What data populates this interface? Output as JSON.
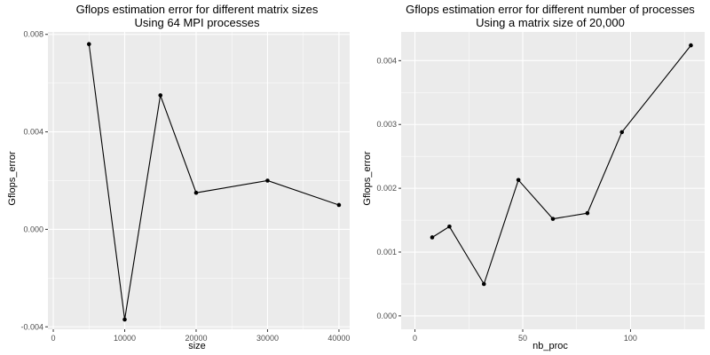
{
  "chart_data": [
    {
      "type": "line",
      "title": "Gflops estimation error for different matrix sizes",
      "subtitle": "Using 64 MPI processes",
      "xlabel": "size",
      "ylabel": "Gflops_error",
      "x": [
        5000,
        10000,
        15000,
        20000,
        30000,
        40000
      ],
      "y": [
        0.0076,
        -0.0037,
        0.0055,
        0.0015,
        0.002,
        0.001
      ],
      "xlim": [
        -750,
        41500
      ],
      "ylim": [
        -0.0041,
        0.0081
      ],
      "xticks": [
        0,
        10000,
        20000,
        30000,
        40000
      ],
      "xtick_labels": [
        "0",
        "10000",
        "20000",
        "30000",
        "40000"
      ],
      "yticks": [
        -0.004,
        0.0,
        0.004,
        0.008
      ],
      "ytick_labels": [
        "-0.004",
        "0.000",
        "0.004",
        "0.008"
      ],
      "grid": true,
      "colors": {
        "panel": "#ebebeb",
        "grid": "#ffffff",
        "line": "#000000"
      }
    },
    {
      "type": "line",
      "title": "Gflops estimation error for different number of processes",
      "subtitle": "Using a matrix size of 20,000",
      "xlabel": "nb_proc",
      "ylabel": "Gflops_error",
      "x": [
        8,
        16,
        32,
        48,
        64,
        80,
        96,
        128
      ],
      "y": [
        0.00123,
        0.0014,
        0.0005,
        0.00213,
        0.00152,
        0.00161,
        0.00288,
        0.00424
      ],
      "xlim": [
        -6.4,
        134.4
      ],
      "ylim": [
        -0.00021,
        0.00445
      ],
      "xticks": [
        0,
        50,
        100
      ],
      "xtick_labels": [
        "0",
        "50",
        "100"
      ],
      "yticks": [
        0.0,
        0.001,
        0.002,
        0.003,
        0.004
      ],
      "ytick_labels": [
        "0.000",
        "0.001",
        "0.002",
        "0.003",
        "0.004"
      ],
      "grid": true,
      "colors": {
        "panel": "#ebebeb",
        "grid": "#ffffff",
        "line": "#000000"
      }
    }
  ]
}
